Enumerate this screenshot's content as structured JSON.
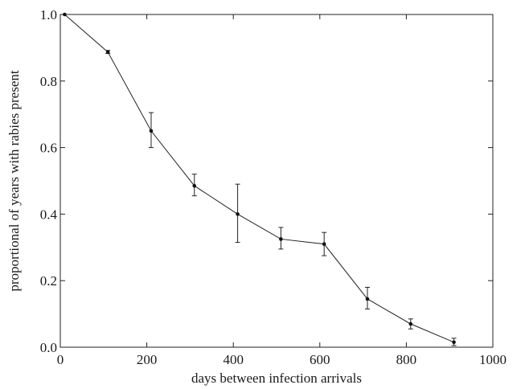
{
  "chart_data": {
    "type": "line",
    "title": "",
    "xlabel": "days between infection arrivals",
    "ylabel": "proportional of years with rabies present",
    "xlim": [
      0,
      1000
    ],
    "ylim": [
      0,
      1.0
    ],
    "xticks": [
      0,
      200,
      400,
      600,
      800,
      1000
    ],
    "yticks": [
      0.0,
      0.2,
      0.4,
      0.6,
      0.8,
      1.0
    ],
    "xtick_labels": [
      "0",
      "200",
      "400",
      "600",
      "800",
      "1000"
    ],
    "ytick_labels": [
      "0.0",
      "0.2",
      "0.4",
      "0.6",
      "0.8",
      "1.0"
    ],
    "grid": false,
    "series": [
      {
        "x": [
          10,
          110,
          210,
          310,
          410,
          510,
          610,
          710,
          810,
          910
        ],
        "y": [
          1.0,
          0.887,
          0.65,
          0.485,
          0.4,
          0.325,
          0.31,
          0.145,
          0.07,
          0.015
        ],
        "err_low": [
          1.0,
          0.883,
          0.6,
          0.455,
          0.315,
          0.295,
          0.275,
          0.115,
          0.055,
          0.005
        ],
        "err_high": [
          1.0,
          0.892,
          0.705,
          0.52,
          0.49,
          0.36,
          0.345,
          0.18,
          0.085,
          0.027
        ]
      }
    ]
  }
}
